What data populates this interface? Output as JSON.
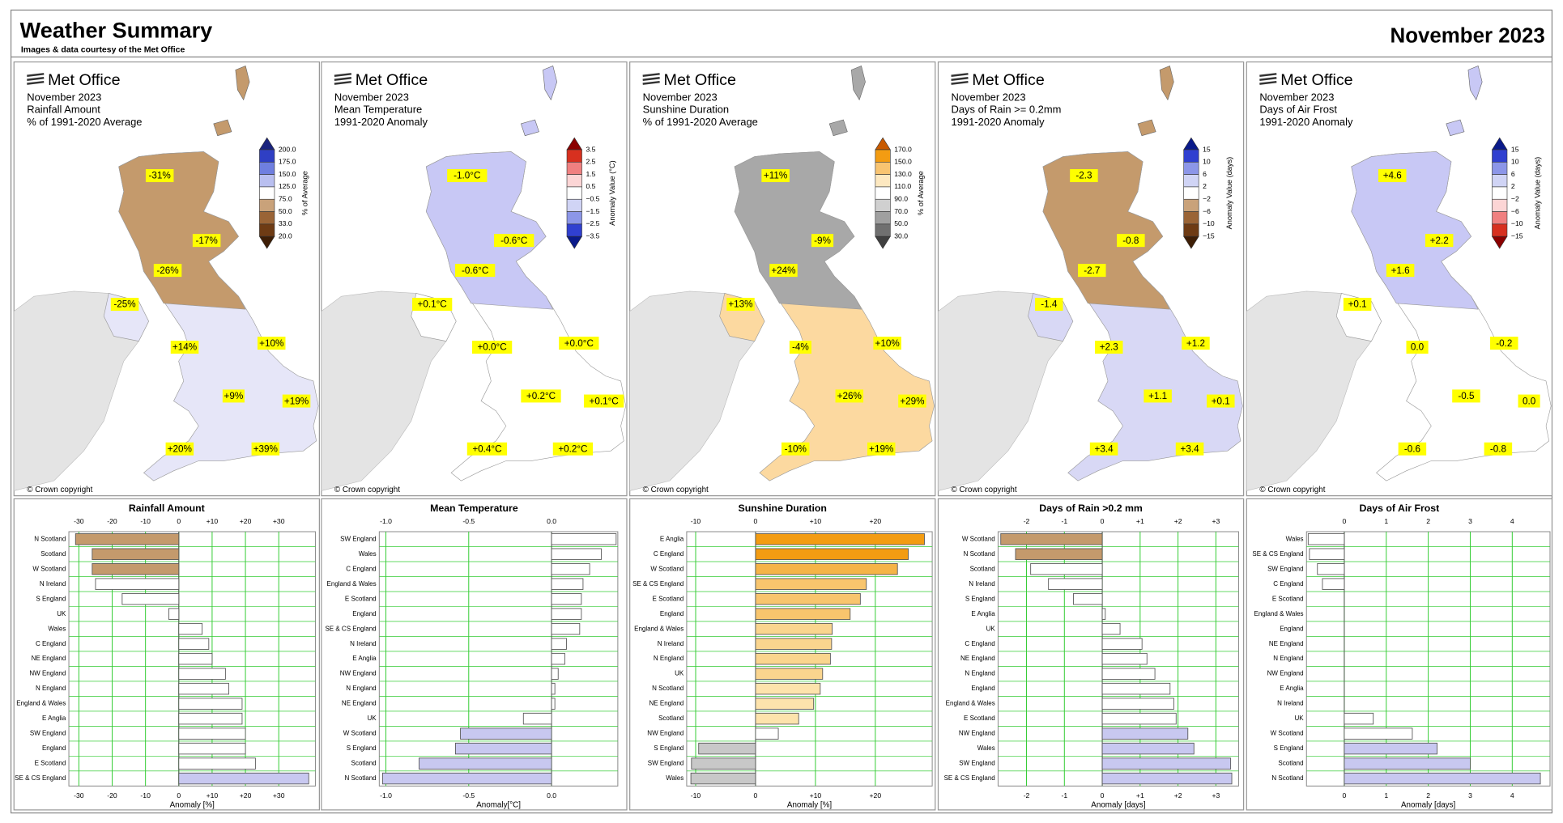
{
  "header": {
    "title": "Weather Summary",
    "subtitle": "Images & data courtesy of the Met Office",
    "date": "November 2023"
  },
  "maps": [
    {
      "brand": "Met Office",
      "lines": [
        "November 2023",
        "Rainfall Amount",
        "% of 1991-2020 Average"
      ],
      "legend_title": "% of Average",
      "legend_ticks": [
        "200.0",
        "175.0",
        "150.0",
        "125.0",
        "75.0",
        "50.0",
        "33.0",
        "20.0"
      ],
      "legend_colors": [
        "#1a237e",
        "#2f3fc4",
        "#6f7fe0",
        "#b9bff0",
        "#ffffff",
        "#c9a27a",
        "#9a6436",
        "#6e3b14",
        "#3e1e06"
      ],
      "north": "#c49a6c",
      "land": "#e6e6f8",
      "label_color": "#000000",
      "labels": [
        "-31%",
        "-17%",
        "-26%",
        "-25%",
        "+14%",
        "+10%",
        "+9%",
        "+19%",
        "+20%",
        "+39%"
      ],
      "copyright": "© Crown copyright"
    },
    {
      "brand": "Met Office",
      "lines": [
        "November 2023",
        "Mean Temperature",
        "1991-2020 Anomaly"
      ],
      "legend_title": "Anomaly Value (°C)",
      "legend_ticks": [
        "3.5",
        "2.5",
        "1.5",
        "0.5",
        "−0.5",
        "−1.5",
        "−2.5",
        "−3.5"
      ],
      "legend_colors": [
        "#8b0000",
        "#d7301f",
        "#f08080",
        "#fcd5d5",
        "#ffffff",
        "#d0d4f5",
        "#8c96e8",
        "#3040d0",
        "#0a1a8a"
      ],
      "north": "#c8c8f5",
      "land": "#ffffff",
      "label_color": "#d00000",
      "labels": [
        "-1.0°C",
        "-0.6°C",
        "-0.6°C",
        "+0.1°C",
        "+0.0°C",
        "+0.0°C",
        "+0.2°C",
        "+0.1°C",
        "+0.4°C",
        "+0.2°C"
      ],
      "copyright": "© Crown copyright"
    },
    {
      "brand": "Met Office",
      "lines": [
        "November 2023",
        "Sunshine Duration",
        "% of 1991-2020 Average"
      ],
      "legend_title": "% of Average",
      "legend_ticks": [
        "170.0",
        "150.0",
        "130.0",
        "110.0",
        "90.0",
        "70.0",
        "50.0",
        "30.0"
      ],
      "legend_colors": [
        "#c85a00",
        "#f39c12",
        "#f8c471",
        "#fde8c0",
        "#ffffff",
        "#d0d0d0",
        "#a0a0a0",
        "#707070",
        "#404040"
      ],
      "north": "#a8a8a8",
      "land": "#fcd9a0",
      "label_color": "#000000",
      "labels": [
        "+11%",
        "-9%",
        "+24%",
        "+13%",
        "-4%",
        "+10%",
        "+26%",
        "+29%",
        "-10%",
        "+19%"
      ],
      "copyright": "© Crown copyright"
    },
    {
      "brand": "Met Office",
      "lines": [
        "November 2023",
        "Days of Rain >= 0.2mm",
        "1991-2020 Anomaly"
      ],
      "legend_title": "Anomaly Value (days)",
      "legend_ticks": [
        "15",
        "10",
        "6",
        "2",
        "−2",
        "−6",
        "−10",
        "−15"
      ],
      "legend_colors": [
        "#0a1a8a",
        "#3040d0",
        "#8c96e8",
        "#d0d4f5",
        "#ffffff",
        "#c9a27a",
        "#9a6436",
        "#6e3b14",
        "#3e1e06"
      ],
      "north": "#c49a6c",
      "land": "#d8d8f5",
      "label_color": "#000000",
      "labels": [
        "-2.3",
        "-0.8",
        "-2.7",
        "-1.4",
        "+2.3",
        "+1.2",
        "+1.1",
        "+0.1",
        "+3.4",
        "+3.4"
      ],
      "copyright": "© Crown copyright"
    },
    {
      "brand": "Met Office",
      "lines": [
        "November 2023",
        "Days of Air Frost",
        "1991-2020 Anomaly"
      ],
      "legend_title": "Anomaly Value (days)",
      "legend_ticks": [
        "15",
        "10",
        "6",
        "2",
        "−2",
        "−6",
        "−10",
        "−15"
      ],
      "legend_colors": [
        "#0a1a8a",
        "#3040d0",
        "#8c96e8",
        "#d0d4f5",
        "#ffffff",
        "#fcd5d5",
        "#f08080",
        "#d7301f",
        "#8b0000"
      ],
      "north": "#c8c8f5",
      "land": "#ffffff",
      "label_color": "#000000",
      "labels": [
        "+4.6",
        "+2.2",
        "+1.6",
        "+0.1",
        "0.0",
        "-0.2",
        "-0.5",
        "0.0",
        "-0.6",
        "-0.8"
      ],
      "copyright": "© Crown copyright"
    }
  ],
  "chart_data": [
    {
      "type": "bar",
      "orientation": "horizontal",
      "title": "Rainfall Amount",
      "x_label": "Anomaly [%]",
      "grid": true,
      "grid_color": "#33cc33",
      "categories": [
        "N Scotland",
        "Scotland",
        "W Scotland",
        "N Ireland",
        "S England",
        "UK",
        "Wales",
        "C England",
        "NE England",
        "NW England",
        "N England",
        "England & Wales",
        "E Anglia",
        "SW England",
        "England",
        "E Scotland",
        "SE & CS England"
      ],
      "values": [
        -31,
        -26,
        -26,
        -25,
        -17,
        -3,
        7,
        9,
        10,
        14,
        15,
        19,
        19,
        20,
        20,
        23,
        39
      ],
      "bar_colors": [
        "#c49a6c",
        "#c49a6c",
        "#c49a6c",
        "#ffffff",
        "#ffffff",
        "#ffffff",
        "#ffffff",
        "#ffffff",
        "#ffffff",
        "#ffffff",
        "#ffffff",
        "#ffffff",
        "#ffffff",
        "#ffffff",
        "#ffffff",
        "#ffffff",
        "#c8c8f0"
      ],
      "xlim": [
        -33,
        41
      ],
      "xticks": [
        -30,
        -20,
        -10,
        0,
        {
          "value": 10,
          "label": "+10"
        },
        {
          "value": 20,
          "label": "+20"
        },
        {
          "value": 30,
          "label": "+30"
        }
      ]
    },
    {
      "type": "bar",
      "orientation": "horizontal",
      "title": "Mean Temperature",
      "x_label": "Anomaly[°C]",
      "grid": true,
      "grid_color": "#33cc33",
      "categories": [
        "SW England",
        "Wales",
        "C England",
        "England & Wales",
        "E Scotland",
        "England",
        "SE & CS England",
        "N Ireland",
        "E Anglia",
        "NW England",
        "N England",
        "NE England",
        "UK",
        "W Scotland",
        "S England",
        "Scotland",
        "N Scotland"
      ],
      "values": [
        0.39,
        0.3,
        0.23,
        0.19,
        0.18,
        0.18,
        0.17,
        0.09,
        0.08,
        0.04,
        0.02,
        0.02,
        -0.17,
        -0.55,
        -0.58,
        -0.8,
        -1.02
      ],
      "bar_colors": [
        "#ffffff",
        "#ffffff",
        "#ffffff",
        "#ffffff",
        "#ffffff",
        "#ffffff",
        "#ffffff",
        "#ffffff",
        "#ffffff",
        "#ffffff",
        "#ffffff",
        "#ffffff",
        "#ffffff",
        "#c8c8f0",
        "#c8c8f0",
        "#c8c8f0",
        "#c8c8f0"
      ],
      "xlim": [
        -1.04,
        0.4
      ],
      "xticks": [
        {
          "value": -1,
          "label": "-1.0"
        },
        -0.5,
        {
          "value": 0,
          "label": "0.0"
        }
      ]
    },
    {
      "type": "bar",
      "orientation": "horizontal",
      "title": "Sunshine Duration",
      "x_label": "Anomaly [%]",
      "grid": true,
      "grid_color": "#33cc33",
      "categories": [
        "E Anglia",
        "C England",
        "W Scotland",
        "SE & CS England",
        "E Scotland",
        "England",
        "England & Wales",
        "N Ireland",
        "N England",
        "UK",
        "N Scotland",
        "NE England",
        "Scotland",
        "NW England",
        "S England",
        "SW England",
        "Wales"
      ],
      "values": [
        28.2,
        25.5,
        23.7,
        18.5,
        17.5,
        15.8,
        12.8,
        12.7,
        12.5,
        11.2,
        10.8,
        9.7,
        7.2,
        3.8,
        -9.5,
        -10.7,
        -10.8
      ],
      "bar_colors": [
        "#f39c12",
        "#f39c12",
        "#f5b447",
        "#f8c56d",
        "#f8c56d",
        "#f8c56d",
        "#fad58e",
        "#fad58e",
        "#fad58e",
        "#fad58e",
        "#fde3ac",
        "#fde3ac",
        "#fde3ac",
        "#ffffff",
        "#c8c8c8",
        "#c8c8c8",
        "#c8c8c8"
      ],
      "xlim": [
        -11.5,
        29.5
      ],
      "xticks": [
        -10,
        0,
        {
          "value": 10,
          "label": "+10"
        },
        {
          "value": 20,
          "label": "+20"
        }
      ]
    },
    {
      "type": "bar",
      "orientation": "horizontal",
      "title": "Days of Rain >0.2 mm",
      "x_label": "Anomaly [days]",
      "grid": true,
      "grid_color": "#33cc33",
      "categories": [
        "W Scotland",
        "N Scotland",
        "Scotland",
        "N Ireland",
        "S England",
        "E Anglia",
        "UK",
        "C England",
        "NE England",
        "N England",
        "England",
        "England & Wales",
        "E Scotland",
        "NW England",
        "Wales",
        "SW England",
        "SE & CS England"
      ],
      "values": [
        -2.68,
        -2.29,
        -1.89,
        -1.42,
        -0.76,
        0.08,
        0.47,
        1.05,
        1.18,
        1.39,
        1.79,
        1.89,
        1.95,
        2.26,
        2.42,
        3.39,
        3.42
      ],
      "bar_colors": [
        "#c49a6c",
        "#c49a6c",
        "#ffffff",
        "#ffffff",
        "#ffffff",
        "#ffffff",
        "#ffffff",
        "#ffffff",
        "#ffffff",
        "#ffffff",
        "#ffffff",
        "#ffffff",
        "#ffffff",
        "#c8c8f0",
        "#c8c8f0",
        "#c8c8f0",
        "#c8c8f0"
      ],
      "xlim": [
        -2.75,
        3.6
      ],
      "xticks": [
        -2,
        -1,
        0,
        {
          "value": 1,
          "label": "+1"
        },
        {
          "value": 2,
          "label": "+2"
        },
        {
          "value": 3,
          "label": "+3"
        }
      ]
    },
    {
      "type": "bar",
      "orientation": "horizontal",
      "title": "Days of Air Frost",
      "x_label": "Anomaly [days]",
      "grid": true,
      "grid_color": "#33cc33",
      "categories": [
        "Wales",
        "SE & CS England",
        "SW England",
        "C England",
        "E Scotland",
        "England & Wales",
        "England",
        "NE England",
        "N England",
        "NW England",
        "E Anglia",
        "N Ireland",
        "UK",
        "W Scotland",
        "S England",
        "Scotland",
        "N Scotland"
      ],
      "values": [
        -0.86,
        -0.83,
        -0.64,
        -0.52,
        0,
        0,
        0,
        0,
        0,
        0,
        0,
        0,
        0.69,
        1.62,
        2.21,
        3.0,
        4.67
      ],
      "bar_colors": [
        "#ffffff",
        "#ffffff",
        "#ffffff",
        "#ffffff",
        "#ffffff",
        "#ffffff",
        "#ffffff",
        "#ffffff",
        "#ffffff",
        "#ffffff",
        "#ffffff",
        "#ffffff",
        "#ffffff",
        "#ffffff",
        "#c8c8f0",
        "#c8c8f0",
        "#c8c8f0"
      ],
      "xlim": [
        -0.9,
        4.9
      ],
      "xticks": [
        0,
        1,
        2,
        3,
        4
      ]
    }
  ]
}
